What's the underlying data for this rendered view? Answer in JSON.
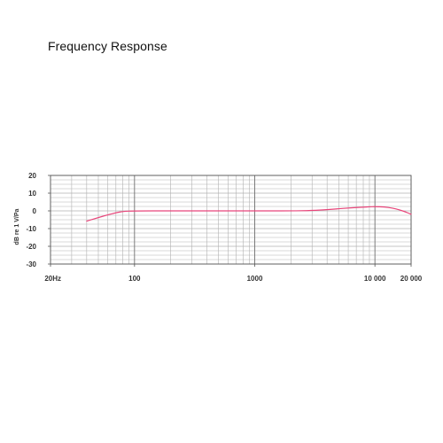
{
  "title": "Frequency Response",
  "chart_data": {
    "type": "line",
    "title": "Frequency Response",
    "xlabel": "",
    "ylabel": "dB re 1 V/Pa",
    "xscale": "log",
    "xlim": [
      20,
      20000
    ],
    "ylim": [
      -30,
      20
    ],
    "grid": true,
    "x_tick_labels": [
      {
        "value": 20,
        "label": "20Hz"
      },
      {
        "value": 100,
        "label": "100"
      },
      {
        "value": 1000,
        "label": "1000"
      },
      {
        "value": 10000,
        "label": "10 000"
      },
      {
        "value": 20000,
        "label": "20 000"
      }
    ],
    "y_ticks": [
      20,
      10,
      0,
      -10,
      -20,
      -30
    ],
    "series": [
      {
        "color": "#e8457a",
        "x": [
          40,
          50,
          60,
          70,
          80,
          100,
          200,
          500,
          1000,
          2000,
          3000,
          4000,
          5000,
          6000,
          7000,
          8000,
          9000,
          10000,
          12000,
          14000,
          16000,
          18000,
          20000
        ],
        "y": [
          -5.8,
          -3.8,
          -2.2,
          -1.1,
          -0.3,
          0,
          0,
          0,
          0,
          0,
          0.2,
          0.7,
          1.2,
          1.6,
          1.9,
          2.1,
          2.3,
          2.4,
          2.2,
          1.6,
          0.6,
          -0.6,
          -1.9
        ]
      }
    ]
  }
}
